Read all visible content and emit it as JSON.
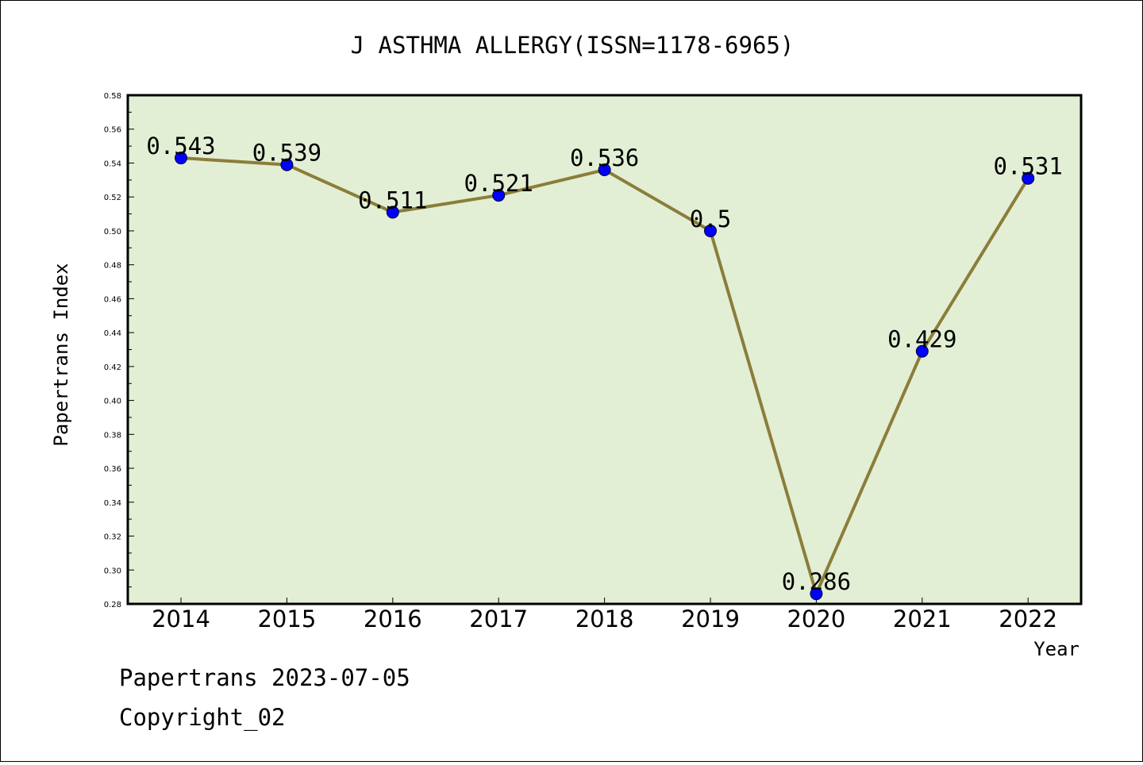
{
  "chart_data": {
    "type": "line",
    "title": "J ASTHMA ALLERGY(ISSN=1178-6965)",
    "xlabel": "Year",
    "ylabel": "Papertrans Index",
    "x": [
      "2014",
      "2015",
      "2016",
      "2017",
      "2018",
      "2019",
      "2020",
      "2021",
      "2022"
    ],
    "series": [
      {
        "values": [
          0.543,
          0.539,
          0.511,
          0.521,
          0.536,
          0.5,
          0.286,
          0.429,
          0.531
        ],
        "labels": [
          "0.543",
          "0.539",
          "0.511",
          "0.521",
          "0.536",
          "0.5",
          "0.286",
          "0.429",
          "0.531"
        ]
      }
    ],
    "ylim": [
      0.28,
      0.58
    ],
    "yticks": [
      "0.28",
      "0.30",
      "0.32",
      "0.34",
      "0.36",
      "0.38",
      "0.40",
      "0.42",
      "0.44",
      "0.46",
      "0.48",
      "0.50",
      "0.52",
      "0.54",
      "0.56",
      "0.58"
    ],
    "grid": false,
    "legend": "none",
    "colors": {
      "plot_background": "#e2efd5",
      "line": "#8b7d3a",
      "marker": "#0000ff"
    }
  },
  "footer": {
    "date_line": "Papertrans 2023-07-05",
    "copyright": "Copyright_02"
  }
}
